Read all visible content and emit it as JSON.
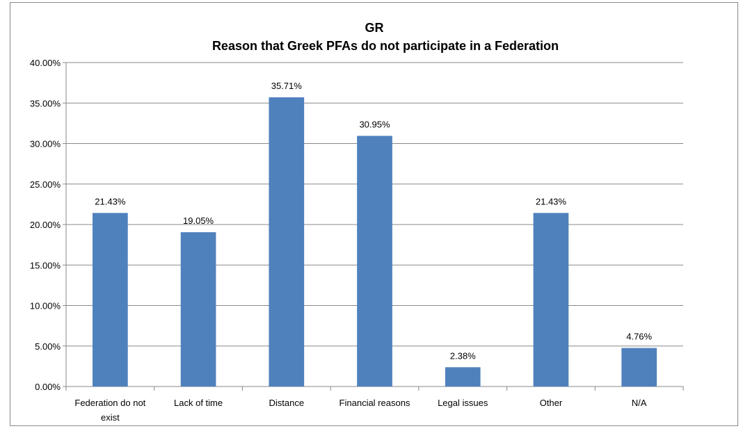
{
  "chart_data": {
    "type": "bar",
    "title": [
      "GR",
      "Reason that Greek PFAs do not participate in a Federation"
    ],
    "categories": [
      "Federation do not exist",
      "Lack of time",
      "Distance",
      "Financial reasons",
      "Legal issues",
      "Other",
      "N/A"
    ],
    "values": [
      21.43,
      19.05,
      35.71,
      30.95,
      2.38,
      21.43,
      4.76
    ],
    "value_labels": [
      "21.43%",
      "19.05%",
      "35.71%",
      "30.95%",
      "2.38%",
      "21.43%",
      "4.76%"
    ],
    "color": "#4f81bd",
    "ylim": [
      0,
      40
    ],
    "yticks": [
      {
        "value": 0,
        "label": "0.00%"
      },
      {
        "value": 5,
        "label": "5.00%"
      },
      {
        "value": 10,
        "label": "10.00%"
      },
      {
        "value": 15,
        "label": "15.00%"
      },
      {
        "value": 20,
        "label": "20.00%"
      },
      {
        "value": 25,
        "label": "25.00%"
      },
      {
        "value": 30,
        "label": "30.00%"
      },
      {
        "value": 35,
        "label": "35.00%"
      },
      {
        "value": 40,
        "label": "40.00%"
      }
    ],
    "grid": true
  }
}
